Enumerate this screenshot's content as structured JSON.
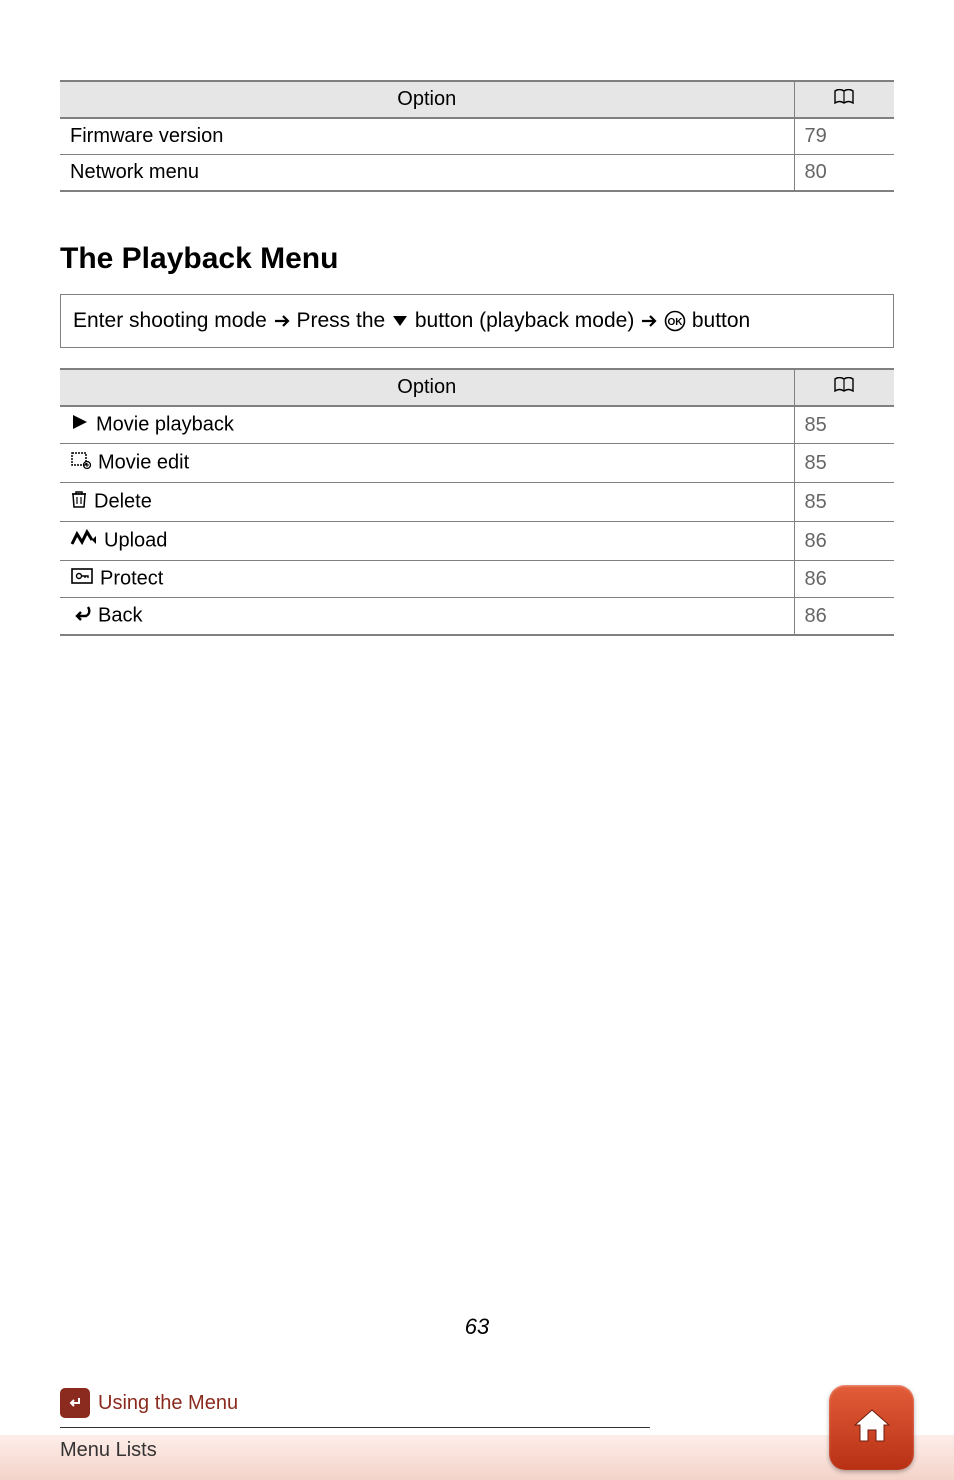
{
  "top_table": {
    "header_option": "Option",
    "rows": [
      {
        "label": "Firmware version",
        "page": "79"
      },
      {
        "label": "Network menu",
        "page": "80"
      }
    ]
  },
  "heading": "The Playback Menu",
  "instruction": {
    "prefix": "Enter shooting mode ",
    "mid1": " Press the ",
    "mid2": " button (playback mode) ",
    "suffix": " button"
  },
  "playback_table": {
    "header_option": "Option",
    "rows": [
      {
        "icon": "play",
        "label": "Movie playback",
        "page": "85"
      },
      {
        "icon": "movieedit",
        "label": "Movie edit",
        "page": "85"
      },
      {
        "icon": "trash",
        "label": "Delete",
        "page": "85"
      },
      {
        "icon": "upload",
        "label": "Upload",
        "page": "86"
      },
      {
        "icon": "protect",
        "label": "Protect",
        "page": "86"
      },
      {
        "icon": "back",
        "label": "Back",
        "page": "86"
      }
    ]
  },
  "page_number": "63",
  "footer": {
    "section": "Using the Menu",
    "sub": "Menu Lists"
  },
  "colors": {
    "header_bg": "#e6e6e6",
    "border": "#808080",
    "page_text": "#666666",
    "accent": "#8b2a1e",
    "home_gradient_top": "#e35d3a",
    "home_gradient_bottom": "#b83014",
    "footer_gradient_top": "#fdeee9",
    "footer_gradient_bottom": "#f4d3c9"
  }
}
